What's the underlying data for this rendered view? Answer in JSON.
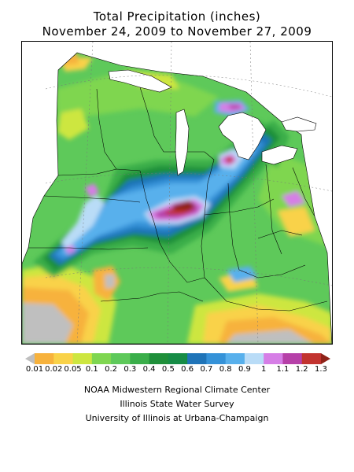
{
  "title": "Total Precipitation (inches)",
  "subtitle": "November 24, 2009 to November 27, 2009",
  "legend": {
    "labels": [
      "0.01",
      "0.02",
      "0.05",
      "0.1",
      "0.2",
      "0.3",
      "0.4",
      "0.5",
      "0.6",
      "0.7",
      "0.8",
      "0.9",
      "1",
      "1.1",
      "1.2",
      "1.3"
    ],
    "colors": [
      "#bfbfbf",
      "#f7b23c",
      "#f9d248",
      "#cde640",
      "#7fd650",
      "#5ec95a",
      "#3aae4a",
      "#1f8f3a",
      "#168c46",
      "#1f74b8",
      "#3592d8",
      "#58b0ec",
      "#b9dcf7",
      "#d67ee6",
      "#b640a8",
      "#c2332f",
      "#8f2318"
    ]
  },
  "credits": [
    "NOAA Midwestern Regional Climate Center",
    "Illinois State Water Survey",
    "University of Illinois at Urbana-Champaign"
  ]
}
